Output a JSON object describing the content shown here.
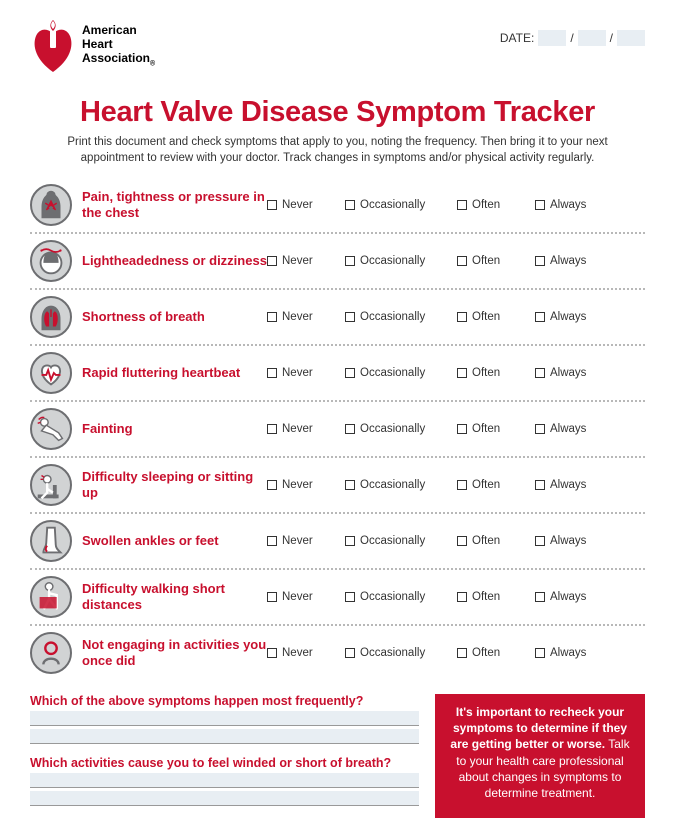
{
  "header": {
    "org_line1": "American",
    "org_line2": "Heart",
    "org_line3": "Association",
    "date_label": "DATE:",
    "sep": "/"
  },
  "title": "Heart Valve Disease Symptom Tracker",
  "subtitle": "Print this document and check symptoms that apply to you, noting the frequency. Then bring it to your next appointment to review with your doctor. Track changes in symptoms and/or physical activity regularly.",
  "frequencies": [
    "Never",
    "Occasionally",
    "Often",
    "Always"
  ],
  "symptoms": [
    {
      "label": "Pain, tightness or pressure in the chest",
      "icon": "chest"
    },
    {
      "label": "Lightheadedness or dizziness",
      "icon": "dizzy"
    },
    {
      "label": "Shortness of breath",
      "icon": "lungs"
    },
    {
      "label": "Rapid fluttering heartbeat",
      "icon": "heart"
    },
    {
      "label": "Fainting",
      "icon": "faint"
    },
    {
      "label": "Difficulty sleeping or sitting up",
      "icon": "sleep"
    },
    {
      "label": "Swollen ankles or feet",
      "icon": "foot"
    },
    {
      "label": "Difficulty walking short distances",
      "icon": "walk"
    },
    {
      "label": "Not engaging in activities you once did",
      "icon": "inactive"
    }
  ],
  "questions": {
    "q1": "Which of the above symptoms happen most frequently?",
    "q2": "Which activities cause you to feel winded or short of breath?"
  },
  "callout": {
    "bold": "It's important to recheck your symptoms to determine if they are getting better or worse.",
    "rest": "  Talk to your health care professional about changes in symptoms to determine treatment."
  },
  "colors": {
    "brand_red": "#c8102e",
    "icon_bg": "#d1d3d4",
    "icon_border": "#6d6e71",
    "input_bg": "#e8eef3"
  }
}
